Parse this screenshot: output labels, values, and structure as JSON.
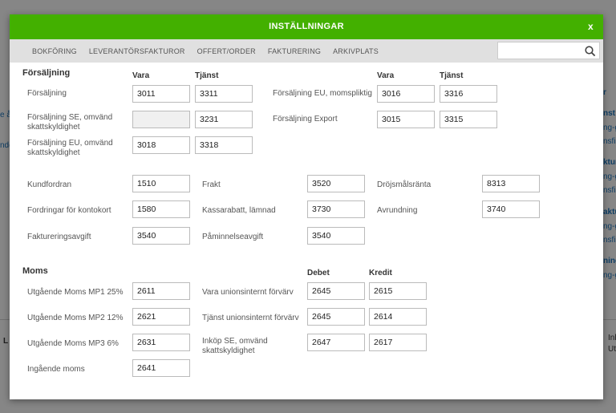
{
  "modal": {
    "title": "INSTÄLLNINGAR",
    "close": "x"
  },
  "tabs": [
    "BOKFÖRING",
    "LEVERANTÖRSFAKTUROR",
    "OFFERT/ORDER",
    "FAKTURERING",
    "ARKIVPLATS"
  ],
  "search": {
    "value": "",
    "placeholder": ""
  },
  "sales": {
    "title": "Försäljning",
    "col_vara": "Vara",
    "col_tjanst": "Tjänst",
    "rows": [
      {
        "label": "Försäljning",
        "vara": "3011",
        "tjanst": "3311"
      },
      {
        "label": "Försäljning SE, omvänd skattskyldighet",
        "vara": "",
        "tjanst": "3231"
      },
      {
        "label": "Försäljning EU, omvänd skattskyldighet",
        "vara": "3018",
        "tjanst": "3318"
      }
    ],
    "rows_right": [
      {
        "label": "Försäljning EU, momspliktig",
        "vara": "3016",
        "tjanst": "3316"
      },
      {
        "label": "Försäljning Export",
        "vara": "3015",
        "tjanst": "3315"
      }
    ]
  },
  "accounts": [
    {
      "label": "Kundfordran",
      "value": "1510"
    },
    {
      "label": "Frakt",
      "value": "3520"
    },
    {
      "label": "Dröjsmålsränta",
      "value": "8313"
    },
    {
      "label": "Fordringar för kontokort",
      "value": "1580"
    },
    {
      "label": "Kassarabatt, lämnad",
      "value": "3730"
    },
    {
      "label": "Avrundning",
      "value": "3740"
    },
    {
      "label": "Faktureringsavgift",
      "value": "3540"
    },
    {
      "label": "Påminnelseavgift",
      "value": "3540"
    }
  ],
  "vat": {
    "title": "Moms",
    "col_debet": "Debet",
    "col_kredit": "Kredit",
    "left": [
      {
        "label": "Utgående Moms MP1 25%",
        "value": "2611"
      },
      {
        "label": "Utgående Moms MP2 12%",
        "value": "2621"
      },
      {
        "label": "Utgående Moms MP3 6%",
        "value": "2631"
      },
      {
        "label": "Ingående moms",
        "value": "2641"
      }
    ],
    "right": [
      {
        "label": "Vara unionsinternt förvärv",
        "debet": "2645",
        "kredit": "2615"
      },
      {
        "label": "Tjänst unionsinternt förvärv",
        "debet": "2645",
        "kredit": "2614"
      },
      {
        "label": "Inköp SE, omvänd skattskyldighet",
        "debet": "2647",
        "kredit": "2617"
      }
    ]
  },
  "background": {
    "left": [
      "e å",
      "nde"
    ],
    "right": [
      "r",
      "nst",
      "ng-g",
      "nsfil",
      "ktur",
      "ng-g",
      "nsfil",
      "aktu",
      "ng-g",
      "nsfil",
      "ning",
      "ng-g",
      "Inl",
      "Ut"
    ],
    "left_bottom": "L"
  }
}
